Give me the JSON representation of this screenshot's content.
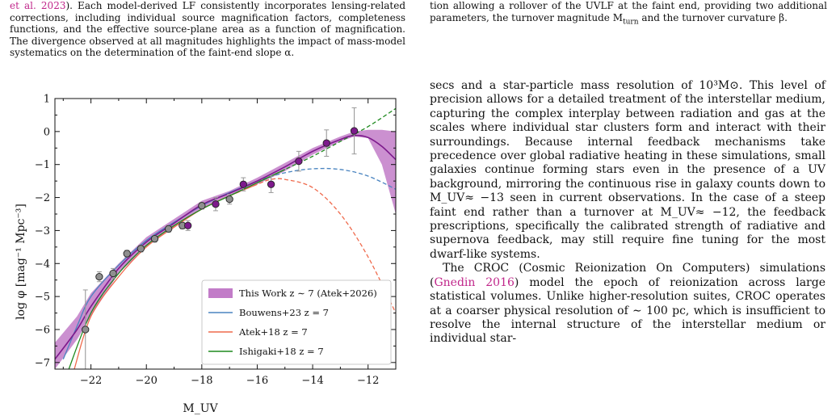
{
  "caption_left": {
    "lead": "et al. 2023",
    "tail": "). Each model-derived LF consistently incorporates lensing-related corrections, including individual source magnification factors, completeness functions, and the effective source-plane area as a function of magnification. The divergence observed at all magnitudes highlights the impact of mass-model systematics on the determination of the faint-end slope α."
  },
  "caption_right": {
    "text": "tion allowing a rollover of the UVLF at the faint end, providing two additional parameters, the turnover magnitude M",
    "sub": "turn",
    "text2": " and the turnover curvature β."
  },
  "body": {
    "p1": "secs and a star-particle mass resolution of 10³M⊙. This level of precision allows for a detailed treatment of the interstellar medium, capturing the complex interplay between radiation and gas at the scales where individual star clusters form and interact with their surroundings. Because internal feedback mechanisms take precedence over global radiative heating in these simulations, small galaxies continue forming stars even in the presence of a UV background, mirroring the continuous rise in galaxy counts down to M_UV≈ −13 seen in current observations. In the case of a steep faint end rather than a turnover at M_UV≈ −12, the feedback prescriptions, specifically the calibrated strength of radiative and supernova feedback, may still require fine tuning for the most dwarf-like systems.",
    "p2_a": "The CROC (Cosmic Reionization On Computers) simulations (",
    "p2_cite": "Gnedin 2016",
    "p2_b": ") model the epoch of reionization across large statistical volumes. Unlike higher-resolution suites, CROC operates at a coarser physical resolution of ∼ 100 pc, which is insufficient to resolve the internal structure of the interstellar medium or individual star-"
  },
  "chart_data": {
    "type": "line",
    "xlabel": "M_UV",
    "ylabel": "log φ [mag⁻¹ Mpc⁻³]",
    "xlim": [
      -23.3,
      -11.0
    ],
    "ylim": [
      -7.2,
      1.0
    ],
    "xticks": [
      -22,
      -20,
      -18,
      -16,
      -14,
      -12
    ],
    "yticks": [
      1,
      0,
      -1,
      -2,
      -3,
      -4,
      -5,
      -6,
      -7
    ],
    "legend_position": "lower-right",
    "colors": {
      "this_work": "#c27cc8",
      "this_work_line": "#7d1a8c",
      "bouwens": "#4a84c0",
      "atek18": "#ef6a4c",
      "ishigaki": "#1f8a1f",
      "points_gray": "#8f8f8f",
      "points_purple": "#7d1a8c"
    },
    "series": [
      {
        "name": "This Work z ∼ 7 (Atek+2026)",
        "kind": "band",
        "x": [
          -23.3,
          -22.5,
          -22,
          -21,
          -20,
          -19,
          -18,
          -17,
          -16,
          -15,
          -14,
          -13,
          -12.5,
          -12,
          -11.5,
          -11.0
        ],
        "y_lo": [
          -7.2,
          -6.3,
          -5.6,
          -4.3,
          -3.5,
          -2.9,
          -2.35,
          -1.95,
          -1.6,
          -1.2,
          -0.7,
          -0.3,
          -0.15,
          -0.2,
          -1.0,
          -2.5
        ],
        "y_hi": [
          -6.4,
          -5.6,
          -4.9,
          -4.0,
          -3.2,
          -2.65,
          -2.1,
          -1.8,
          -1.4,
          -0.95,
          -0.5,
          -0.15,
          0.0,
          0.05,
          0.05,
          0.0
        ],
        "y_mid": [
          -6.9,
          -6.0,
          -5.3,
          -4.15,
          -3.35,
          -2.78,
          -2.22,
          -1.87,
          -1.5,
          -1.07,
          -0.6,
          -0.24,
          -0.12,
          -0.18,
          -0.45,
          -0.85
        ]
      },
      {
        "name": "Bouwens+23 z = 7",
        "kind": "line",
        "x": [
          -23.0,
          -22.5,
          -22,
          -21,
          -20,
          -19,
          -18,
          -17,
          -16,
          -15,
          -14,
          -13,
          -12,
          -11.0
        ],
        "y": [
          -6.9,
          -5.9,
          -5.0,
          -4.05,
          -3.3,
          -2.75,
          -2.25,
          -1.85,
          -1.5,
          -1.25,
          -1.13,
          -1.15,
          -1.35,
          -1.75
        ],
        "dashed_from": -15.8
      },
      {
        "name": "Atek+18 z = 7",
        "kind": "line",
        "x": [
          -22.6,
          -22,
          -21,
          -20,
          -19,
          -18,
          -17,
          -16,
          -15.5,
          -15,
          -14,
          -13,
          -12,
          -11.0
        ],
        "y": [
          -7.2,
          -5.6,
          -4.4,
          -3.5,
          -2.9,
          -2.35,
          -1.95,
          -1.6,
          -1.45,
          -1.45,
          -1.7,
          -2.5,
          -3.8,
          -5.5
        ],
        "dashed_from": -16.0
      },
      {
        "name": "Ishigaki+18 z = 7",
        "kind": "line",
        "x": [
          -22.8,
          -22,
          -21,
          -20,
          -19,
          -18,
          -17,
          -16,
          -15,
          -14,
          -13,
          -12,
          -11.0
        ],
        "y": [
          -7.2,
          -5.5,
          -4.3,
          -3.45,
          -2.85,
          -2.35,
          -1.95,
          -1.55,
          -1.15,
          -0.75,
          -0.3,
          0.15,
          0.7
        ],
        "dashed_from": -15.0
      }
    ],
    "points_gray": [
      {
        "x": -22.2,
        "y": -6.0,
        "err": 1.2
      },
      {
        "x": -21.7,
        "y": -4.4,
        "err": 0.15
      },
      {
        "x": -21.2,
        "y": -4.3,
        "err": 0.15
      },
      {
        "x": -20.7,
        "y": -3.7,
        "err": 0.1
      },
      {
        "x": -20.2,
        "y": -3.55,
        "err": 0.1
      },
      {
        "x": -19.7,
        "y": -3.25,
        "err": 0.1
      },
      {
        "x": -19.2,
        "y": -2.95,
        "err": 0.1
      },
      {
        "x": -18.7,
        "y": -2.85,
        "err": 0.1
      },
      {
        "x": -18.0,
        "y": -2.25,
        "err": 0.1
      },
      {
        "x": -17.0,
        "y": -2.05,
        "err": 0.15
      }
    ],
    "points_purple": [
      {
        "x": -18.5,
        "y": -2.85,
        "err": 0.15
      },
      {
        "x": -17.5,
        "y": -2.2,
        "err": 0.2
      },
      {
        "x": -16.5,
        "y": -1.6,
        "err": 0.2
      },
      {
        "x": -15.5,
        "y": -1.6,
        "err": 0.25
      },
      {
        "x": -14.5,
        "y": -0.9,
        "err": 0.3
      },
      {
        "x": -13.5,
        "y": -0.35,
        "err": 0.4
      },
      {
        "x": -12.5,
        "y": 0.02,
        "err": 0.7
      }
    ]
  }
}
